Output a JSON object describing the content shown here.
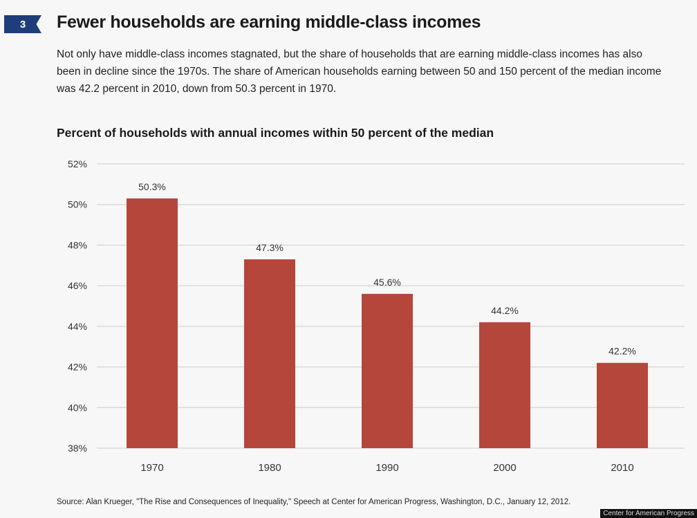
{
  "figure": {
    "number": "3",
    "title": "Fewer households are earning middle-class incomes",
    "description": "Not only have middle-class incomes stagnated, but the share of households that are earning middle-class incomes has also been in decline since the 1970s. The share of American households earning between 50 and 150 percent of the median income was 42.2 percent in 2010, down from 50.3 percent in 1970.",
    "source": "Source: Alan Krueger, \"The Rise and Consequences of Inequality,\" Speech at Center for American Progress, Washington, D.C., January 12, 2012.",
    "credit": "Center for American Progress"
  },
  "chart_data": {
    "type": "bar",
    "title": "Percent of households with annual incomes within 50 percent of the median",
    "xlabel": "",
    "ylabel": "",
    "categories": [
      "1970",
      "1980",
      "1990",
      "2000",
      "2010"
    ],
    "values": [
      50.3,
      47.3,
      45.6,
      44.2,
      42.2
    ],
    "data_labels": [
      "50.3%",
      "47.3%",
      "45.6%",
      "44.2%",
      "42.2%"
    ],
    "ylim": [
      38,
      52
    ],
    "yticks": [
      38,
      40,
      42,
      44,
      46,
      48,
      50,
      52
    ],
    "ytick_labels": [
      "38%",
      "40%",
      "42%",
      "44%",
      "46%",
      "48%",
      "50%",
      "52%"
    ],
    "grid": true,
    "bar_color": "#b5463c",
    "grid_color": "#cccccc"
  }
}
